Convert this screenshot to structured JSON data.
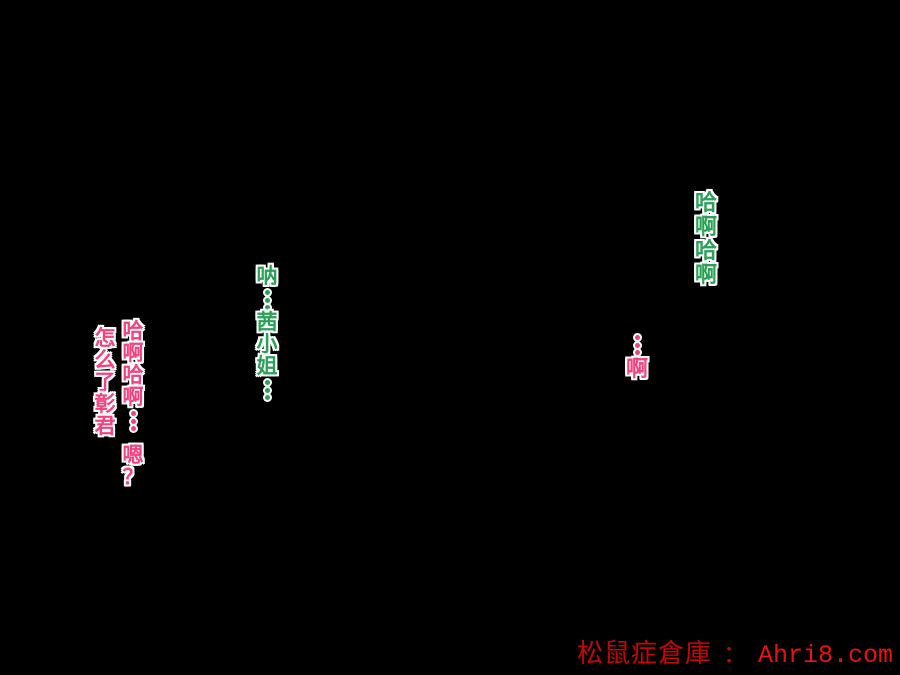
{
  "page": {
    "background_color": "#000000",
    "description": "black comic page with vertical dialogue text"
  },
  "colors": {
    "green": "#2ba157",
    "pink": "#f5417d",
    "text_outline": "#ffffff",
    "watermark_cn": "#c50606",
    "watermark_url": "#e91111"
  },
  "speech_texts": [
    {
      "id": "haa-top-right",
      "color": "green",
      "columns": [
        "哈啊哈啊"
      ]
    },
    {
      "id": "ah-middle",
      "color": "pink",
      "columns": [
        "…啊"
      ]
    },
    {
      "id": "nee-akane",
      "color": "green",
      "columns": [
        "呐…茜小姐…"
      ]
    },
    {
      "id": "haa-left",
      "color": "pink",
      "columns": [
        "哈啊哈啊… 嗯？",
        "怎么了彰君"
      ]
    }
  ],
  "watermark": {
    "site_name": "松鼠症倉庫",
    "separator": "：",
    "url": "Ahri8.com"
  }
}
